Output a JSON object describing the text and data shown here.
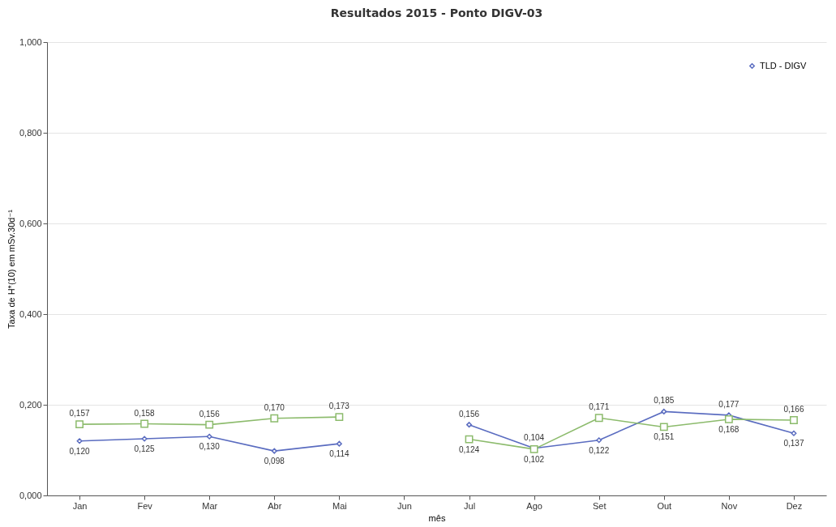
{
  "chart_data": {
    "type": "line",
    "title": "Resultados 2015 - Ponto DIGV-03",
    "xlabel": "mês",
    "ylabel": "Taxa de H*(10) em mSv.30d⁻¹",
    "categories": [
      "Jan",
      "Fev",
      "Mar",
      "Abr",
      "Mai",
      "Jun",
      "Jul",
      "Ago",
      "Set",
      "Out",
      "Nov",
      "Dez"
    ],
    "series": [
      {
        "name": "TLD - DIGV",
        "color": "#5a6cc0",
        "marker": "diamond",
        "values": [
          0.12,
          0.125,
          0.13,
          0.098,
          0.114,
          null,
          0.156,
          0.104,
          0.122,
          0.185,
          0.177,
          0.137
        ],
        "value_labels": [
          "0,120",
          "0,125",
          "0,130",
          "0,098",
          "0,114",
          null,
          "0,156",
          "0,104",
          "0,122",
          "0,185",
          "0,177",
          "0,137"
        ]
      },
      {
        "color": "#8cbb6c",
        "marker": "square",
        "values": [
          0.157,
          0.158,
          0.156,
          0.17,
          0.173,
          null,
          0.124,
          0.102,
          0.171,
          0.151,
          0.168,
          0.166
        ],
        "value_labels": [
          "0,157",
          "0,158",
          "0,156",
          "0,170",
          "0,173",
          null,
          "0,124",
          "0,102",
          "0,171",
          "0,151",
          "0,168",
          "0,166"
        ]
      }
    ],
    "ylim": [
      0,
      1
    ],
    "yticks": [
      {
        "value": 0,
        "label": "0,000"
      },
      {
        "value": 0.2,
        "label": "0,200"
      },
      {
        "value": 0.4,
        "label": "0,400"
      },
      {
        "value": 0.6,
        "label": "0,600"
      },
      {
        "value": 0.8,
        "label": "0,800"
      },
      {
        "value": 1,
        "label": "1,000"
      }
    ],
    "grid": "y",
    "legend": "top right"
  }
}
